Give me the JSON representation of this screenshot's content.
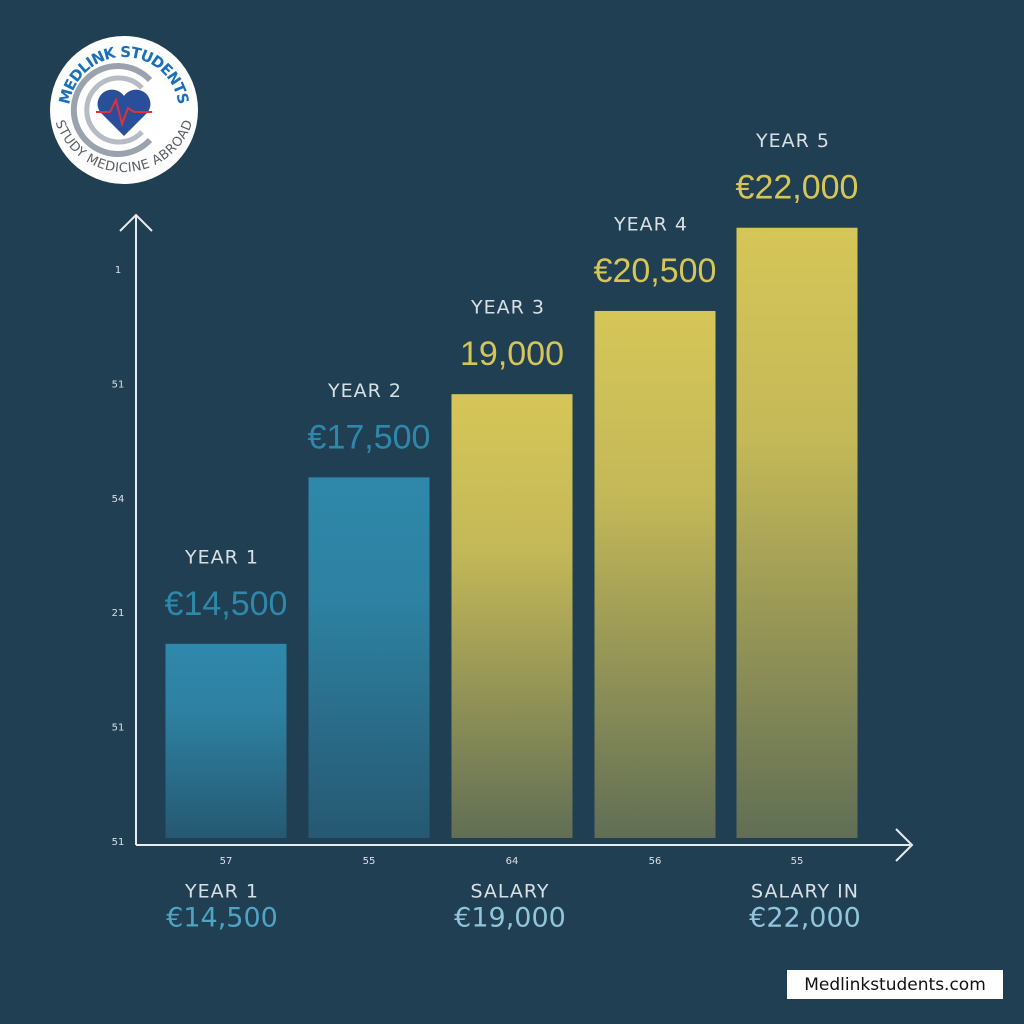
{
  "logo": {
    "top_text": "MEDLINK STUDENTS",
    "bottom_text": "STUDY MEDICINE ABROAD"
  },
  "chart_data": {
    "type": "bar",
    "categories": [
      "YEAR 1",
      "YEAR 2",
      "YEAR 3",
      "YEAR 4",
      "YEAR 5"
    ],
    "values": [
      14500,
      17500,
      19000,
      20500,
      22000
    ],
    "value_labels": [
      "€14,500",
      "€17,500",
      "19,000",
      "€20,500",
      "€22,000"
    ],
    "colors": [
      "#2f88aa",
      "#2f88aa",
      "#d6c658",
      "#d6c658",
      "#d6c658"
    ],
    "ylim": [
      11000,
      22500
    ],
    "y_axis_marks": [
      "1",
      "51",
      "54",
      "21",
      "51",
      "51"
    ],
    "x_axis_marks": [
      "57",
      "55",
      "64",
      "56",
      "55"
    ],
    "captions": [
      {
        "title": "YEAR 1",
        "value": "€14,500"
      },
      {
        "title": "SALARY",
        "value": "€19,000"
      },
      {
        "title": "SALARY IN",
        "value": "€22,000"
      }
    ]
  },
  "footer": "Medlinkstudents.com"
}
